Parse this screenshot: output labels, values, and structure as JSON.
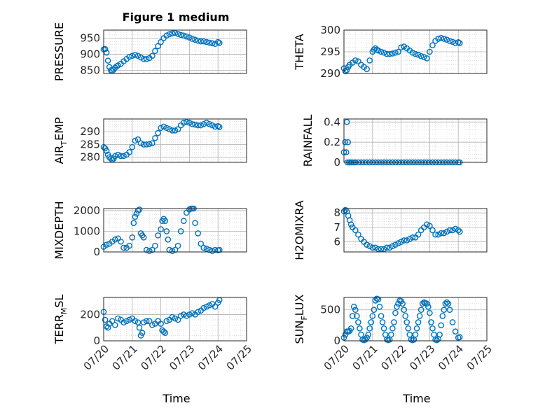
{
  "figure_title": "Figure 1 medium",
  "xlabel": "Time",
  "x_ticks": [
    "07/20",
    "07/21",
    "07/22",
    "07/23",
    "07/24",
    "07/25"
  ],
  "colors": {
    "marker": "#0072BD",
    "grid": "#b0b0b0",
    "axis": "#262626"
  },
  "chart_data": [
    {
      "type": "scatter",
      "ylabel_main": "PRESSURE",
      "ylabel_sub": "",
      "ylabel_rest": "",
      "xlim": [
        0,
        5
      ],
      "ylim": [
        840,
        975
      ],
      "yticks": [
        850,
        900,
        950
      ],
      "x": [
        0.0,
        0.05,
        0.1,
        0.15,
        0.2,
        0.25,
        0.3,
        0.35,
        0.4,
        0.45,
        0.5,
        0.6,
        0.7,
        0.8,
        0.9,
        1.0,
        1.1,
        1.2,
        1.3,
        1.4,
        1.5,
        1.6,
        1.7,
        1.8,
        1.9,
        2.0,
        2.1,
        2.2,
        2.3,
        2.4,
        2.5,
        2.6,
        2.7,
        2.8,
        2.9,
        3.0,
        3.1,
        3.2,
        3.3,
        3.4,
        3.5,
        3.6,
        3.7,
        3.8,
        3.9,
        4.0,
        4.05
      ],
      "y": [
        915,
        916,
        905,
        880,
        860,
        850,
        848,
        852,
        858,
        862,
        865,
        870,
        878,
        885,
        892,
        895,
        898,
        895,
        890,
        885,
        885,
        888,
        895,
        910,
        925,
        938,
        950,
        958,
        962,
        965,
        966,
        963,
        960,
        958,
        955,
        952,
        948,
        945,
        942,
        940,
        940,
        938,
        936,
        934,
        932,
        938,
        935
      ]
    },
    {
      "type": "scatter",
      "ylabel_main": "THETA",
      "ylabel_sub": "",
      "ylabel_rest": "",
      "xlim": [
        0,
        5
      ],
      "ylim": [
        290,
        300
      ],
      "yticks": [
        290,
        295,
        300
      ],
      "x": [
        0.0,
        0.05,
        0.1,
        0.15,
        0.2,
        0.3,
        0.4,
        0.5,
        0.6,
        0.7,
        0.8,
        0.9,
        1.0,
        1.05,
        1.1,
        1.15,
        1.2,
        1.3,
        1.4,
        1.5,
        1.6,
        1.7,
        1.8,
        1.9,
        2.0,
        2.1,
        2.2,
        2.3,
        2.4,
        2.5,
        2.6,
        2.7,
        2.8,
        2.9,
        3.0,
        3.1,
        3.2,
        3.3,
        3.4,
        3.5,
        3.6,
        3.7,
        3.8,
        3.9,
        4.0,
        4.05
      ],
      "y": [
        291.2,
        290.5,
        290.8,
        291.5,
        292.0,
        292.5,
        293.0,
        292.8,
        292.0,
        291.5,
        291.0,
        293.0,
        295.0,
        295.5,
        295.8,
        295.5,
        295.3,
        295.0,
        294.8,
        294.5,
        294.5,
        294.6,
        294.8,
        295.0,
        296.0,
        296.2,
        295.8,
        295.3,
        294.8,
        294.5,
        294.3,
        294.0,
        293.8,
        293.5,
        295.0,
        296.5,
        297.5,
        298.0,
        298.2,
        298.0,
        297.8,
        297.5,
        297.3,
        297.0,
        297.2,
        297.0
      ]
    },
    {
      "type": "scatter",
      "ylabel_main": "AIR",
      "ylabel_sub": "T",
      "ylabel_rest": "EMP",
      "xlim": [
        0,
        5
      ],
      "ylim": [
        278,
        295
      ],
      "yticks": [
        280,
        285,
        290
      ],
      "x": [
        0.0,
        0.05,
        0.1,
        0.15,
        0.2,
        0.25,
        0.3,
        0.35,
        0.4,
        0.5,
        0.6,
        0.7,
        0.8,
        0.9,
        1.0,
        1.1,
        1.2,
        1.3,
        1.4,
        1.5,
        1.6,
        1.7,
        1.8,
        1.9,
        2.0,
        2.1,
        2.2,
        2.3,
        2.4,
        2.5,
        2.6,
        2.7,
        2.8,
        2.9,
        3.0,
        3.1,
        3.2,
        3.3,
        3.4,
        3.5,
        3.6,
        3.7,
        3.8,
        3.9,
        4.0,
        4.05
      ],
      "y": [
        284.0,
        283.5,
        282.5,
        281.0,
        280.0,
        279.5,
        279.0,
        279.5,
        280.5,
        281.0,
        280.5,
        280.5,
        281.0,
        282.0,
        284.0,
        286.5,
        287.0,
        285.5,
        285.0,
        285.0,
        285.2,
        285.5,
        287.5,
        289.5,
        291.5,
        292.0,
        291.5,
        291.0,
        290.5,
        290.5,
        291.0,
        292.5,
        293.5,
        293.8,
        293.5,
        293.0,
        292.8,
        292.5,
        292.5,
        293.0,
        293.5,
        293.0,
        292.5,
        292.0,
        292.2,
        291.8
      ]
    },
    {
      "type": "scatter",
      "ylabel_main": "RAINFALL",
      "ylabel_sub": "",
      "ylabel_rest": "",
      "xlim": [
        0,
        5
      ],
      "ylim": [
        0,
        0.43
      ],
      "yticks": [
        0,
        0.2,
        0.4
      ],
      "ytick_labels": [
        "0",
        "0.2",
        "0.4"
      ],
      "x": [
        0.0,
        0.04,
        0.08,
        0.1,
        0.12,
        0.14,
        0.18,
        0.2,
        0.25,
        0.3,
        0.35,
        0.4,
        0.5,
        0.6,
        0.7,
        0.8,
        0.9,
        1.0,
        1.1,
        1.2,
        1.3,
        1.4,
        1.5,
        1.6,
        1.7,
        1.8,
        1.9,
        2.0,
        2.1,
        2.2,
        2.3,
        2.4,
        2.5,
        2.6,
        2.7,
        2.8,
        2.9,
        3.0,
        3.1,
        3.2,
        3.3,
        3.4,
        3.5,
        3.6,
        3.7,
        3.8,
        3.9,
        4.0,
        4.05
      ],
      "y": [
        0.1,
        0.2,
        0.1,
        0.4,
        0.0,
        0.2,
        0.0,
        0.0,
        0.0,
        0.0,
        0.0,
        0.0,
        0.0,
        0.0,
        0.0,
        0.0,
        0.0,
        0.0,
        0.0,
        0.0,
        0.0,
        0.0,
        0.0,
        0.0,
        0.0,
        0.0,
        0.0,
        0.0,
        0.0,
        0.0,
        0.0,
        0.0,
        0.0,
        0.0,
        0.0,
        0.0,
        0.0,
        0.0,
        0.0,
        0.0,
        0.0,
        0.0,
        0.0,
        0.0,
        0.0,
        0.0,
        0.0,
        0.0,
        0.0
      ]
    },
    {
      "type": "scatter",
      "ylabel_main": "MIXDEPTH",
      "ylabel_sub": "",
      "ylabel_rest": "",
      "xlim": [
        0,
        5
      ],
      "ylim": [
        0,
        2100
      ],
      "yticks": [
        0,
        1000,
        2000
      ],
      "x": [
        0.0,
        0.1,
        0.2,
        0.3,
        0.4,
        0.5,
        0.6,
        0.7,
        0.8,
        0.9,
        1.0,
        1.05,
        1.1,
        1.15,
        1.2,
        1.25,
        1.3,
        1.35,
        1.4,
        1.5,
        1.6,
        1.7,
        1.8,
        1.9,
        2.0,
        2.05,
        2.1,
        2.15,
        2.2,
        2.25,
        2.3,
        2.4,
        2.5,
        2.6,
        2.7,
        2.8,
        2.9,
        3.0,
        3.05,
        3.1,
        3.15,
        3.2,
        3.3,
        3.4,
        3.5,
        3.6,
        3.7,
        3.8,
        3.9,
        4.0,
        4.05
      ],
      "y": [
        250,
        350,
        400,
        500,
        600,
        650,
        500,
        200,
        200,
        300,
        700,
        1400,
        1700,
        1850,
        2000,
        2050,
        900,
        800,
        700,
        100,
        50,
        100,
        300,
        800,
        1100,
        1500,
        1600,
        1500,
        1000,
        600,
        100,
        50,
        100,
        300,
        1000,
        1500,
        1900,
        2050,
        2100,
        2100,
        2100,
        1400,
        900,
        400,
        200,
        150,
        100,
        50,
        100,
        80,
        100
      ]
    },
    {
      "type": "scatter",
      "ylabel_main": "H2OMIXRA",
      "ylabel_sub": "",
      "ylabel_rest": "",
      "xlim": [
        0,
        5
      ],
      "ylim": [
        5.3,
        8.3
      ],
      "yticks": [
        6,
        7,
        8
      ],
      "x": [
        0.0,
        0.05,
        0.1,
        0.15,
        0.2,
        0.25,
        0.3,
        0.4,
        0.5,
        0.6,
        0.7,
        0.8,
        0.9,
        1.0,
        1.1,
        1.2,
        1.3,
        1.4,
        1.5,
        1.6,
        1.7,
        1.8,
        1.9,
        2.0,
        2.1,
        2.2,
        2.3,
        2.4,
        2.5,
        2.6,
        2.7,
        2.8,
        2.9,
        3.0,
        3.1,
        3.2,
        3.3,
        3.4,
        3.5,
        3.6,
        3.7,
        3.8,
        3.9,
        4.0,
        4.05
      ],
      "y": [
        8.1,
        8.2,
        8.1,
        7.8,
        7.5,
        7.2,
        7.0,
        6.8,
        6.5,
        6.2,
        6.0,
        5.8,
        5.7,
        5.6,
        5.6,
        5.5,
        5.5,
        5.5,
        5.6,
        5.6,
        5.7,
        5.8,
        5.9,
        6.0,
        6.1,
        6.1,
        6.2,
        6.3,
        6.3,
        6.5,
        6.8,
        7.0,
        7.2,
        7.1,
        6.8,
        6.5,
        6.5,
        6.6,
        6.6,
        6.7,
        6.8,
        6.8,
        6.9,
        6.8,
        6.7
      ]
    },
    {
      "type": "scatter",
      "ylabel_main": "TERR",
      "ylabel_sub": "M",
      "ylabel_rest": "SL",
      "xlim": [
        0,
        5
      ],
      "ylim": [
        0,
        330
      ],
      "yticks": [
        0,
        200
      ],
      "x": [
        0.0,
        0.05,
        0.1,
        0.15,
        0.2,
        0.3,
        0.4,
        0.5,
        0.6,
        0.7,
        0.8,
        0.9,
        1.0,
        1.1,
        1.2,
        1.25,
        1.3,
        1.35,
        1.4,
        1.5,
        1.6,
        1.7,
        1.8,
        1.9,
        2.0,
        2.05,
        2.1,
        2.15,
        2.2,
        2.3,
        2.4,
        2.5,
        2.6,
        2.7,
        2.8,
        2.9,
        3.0,
        3.1,
        3.2,
        3.3,
        3.4,
        3.5,
        3.6,
        3.7,
        3.8,
        3.9,
        4.0,
        4.05
      ],
      "y": [
        220,
        160,
        110,
        100,
        130,
        150,
        120,
        170,
        160,
        140,
        150,
        160,
        170,
        150,
        140,
        100,
        40,
        60,
        140,
        150,
        150,
        120,
        130,
        150,
        130,
        80,
        70,
        60,
        150,
        160,
        180,
        170,
        160,
        190,
        200,
        190,
        200,
        210,
        200,
        220,
        230,
        250,
        260,
        270,
        280,
        260,
        290,
        310
      ]
    },
    {
      "type": "scatter",
      "ylabel_main": "SUN",
      "ylabel_sub": "F",
      "ylabel_rest": "LUX",
      "xlim": [
        0,
        5
      ],
      "ylim": [
        0,
        700
      ],
      "yticks": [
        0,
        500
      ],
      "x": [
        0.0,
        0.05,
        0.1,
        0.15,
        0.2,
        0.25,
        0.3,
        0.35,
        0.4,
        0.45,
        0.5,
        0.55,
        0.6,
        0.65,
        0.7,
        0.75,
        0.8,
        0.85,
        0.9,
        0.95,
        1.0,
        1.05,
        1.1,
        1.15,
        1.2,
        1.25,
        1.3,
        1.35,
        1.4,
        1.45,
        1.5,
        1.55,
        1.6,
        1.65,
        1.7,
        1.75,
        1.8,
        1.85,
        1.9,
        1.95,
        2.0,
        2.05,
        2.1,
        2.15,
        2.2,
        2.25,
        2.3,
        2.35,
        2.4,
        2.45,
        2.5,
        2.55,
        2.6,
        2.65,
        2.7,
        2.75,
        2.8,
        2.85,
        2.9,
        2.95,
        3.0,
        3.05,
        3.1,
        3.15,
        3.2,
        3.25,
        3.3,
        3.35,
        3.4,
        3.45,
        3.5,
        3.55,
        3.6,
        3.65,
        3.7,
        3.8,
        3.9,
        4.0,
        4.05
      ],
      "y": [
        50,
        100,
        150,
        150,
        160,
        200,
        400,
        550,
        500,
        400,
        300,
        200,
        100,
        20,
        10,
        20,
        50,
        100,
        200,
        300,
        400,
        500,
        650,
        680,
        670,
        550,
        400,
        300,
        200,
        100,
        20,
        10,
        20,
        100,
        200,
        300,
        450,
        550,
        600,
        650,
        640,
        600,
        500,
        400,
        300,
        200,
        100,
        20,
        10,
        20,
        100,
        200,
        300,
        400,
        500,
        600,
        620,
        610,
        600,
        550,
        450,
        300,
        200,
        100,
        20,
        10,
        30,
        100,
        250,
        400,
        500,
        600,
        620,
        600,
        500,
        300,
        150,
        50,
        60
      ]
    }
  ]
}
